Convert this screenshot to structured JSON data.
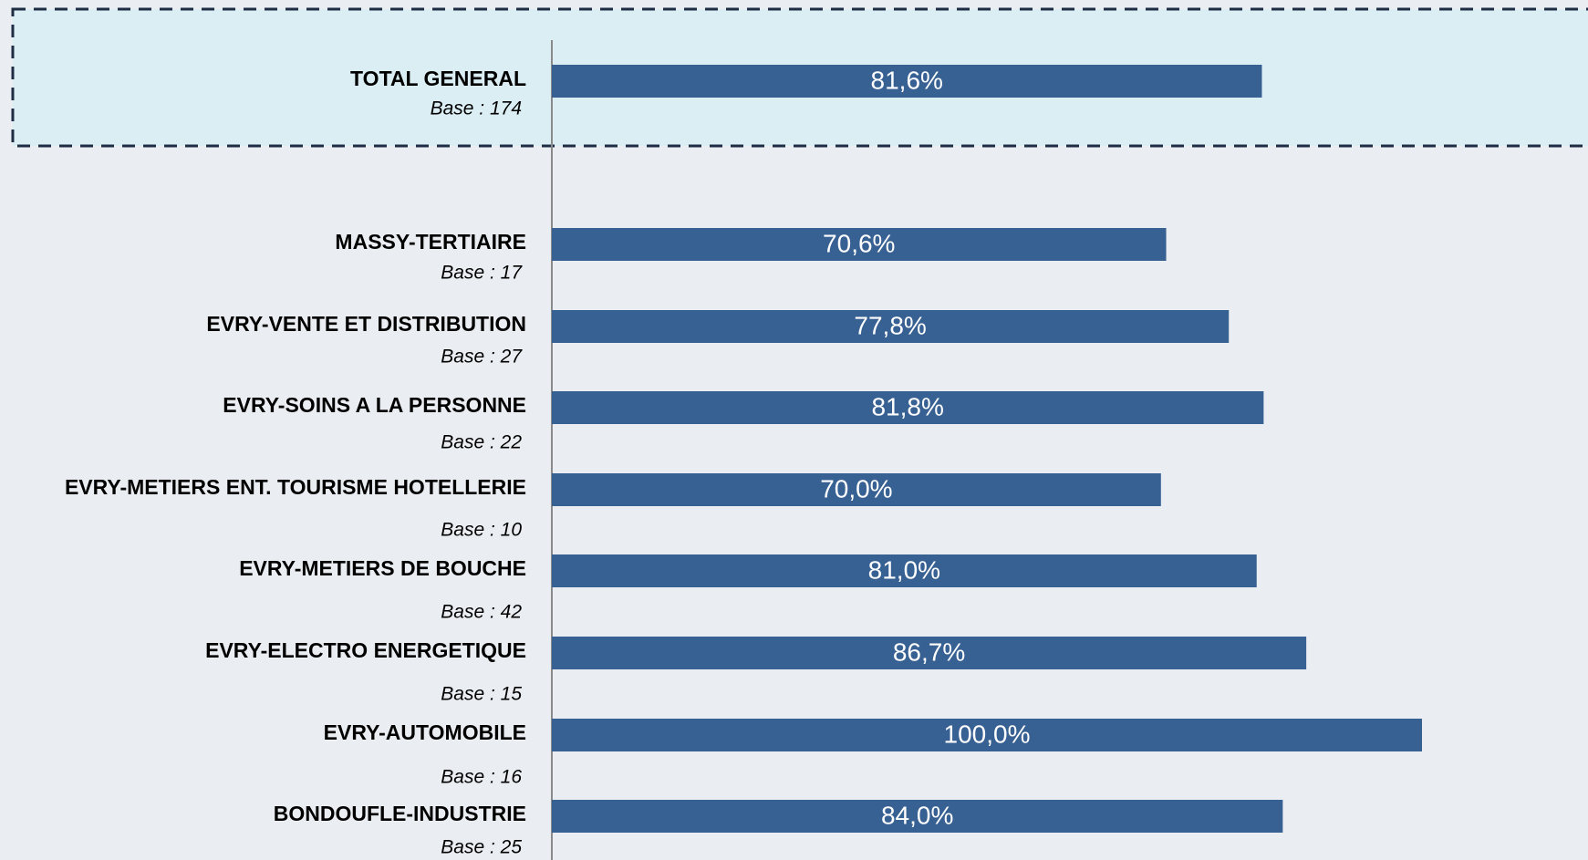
{
  "chart_data": {
    "type": "bar",
    "orientation": "horizontal",
    "categories": [
      "TOTAL GENERAL",
      "MASSY-TERTIAIRE",
      "EVRY-VENTE ET DISTRIBUTION",
      "EVRY-SOINS A LA PERSONNE",
      "EVRY-METIERS ENT. TOURISME HOTELLERIE",
      "EVRY-METIERS DE BOUCHE",
      "EVRY-ELECTRO ENERGETIQUE",
      "EVRY-AUTOMOBILE",
      "BONDOUFLE-INDUSTRIE"
    ],
    "bases": [
      "Base : 174",
      "Base : 17",
      "Base : 27",
      "Base : 22",
      "Base : 10",
      "Base : 42",
      "Base : 15",
      "Base : 16",
      "Base : 25"
    ],
    "values": [
      81.6,
      70.6,
      77.8,
      81.8,
      70.0,
      81.0,
      86.7,
      100.0,
      84.0
    ],
    "value_labels": [
      "81,6%",
      "70,6%",
      "77,8%",
      "81,8%",
      "70,0%",
      "81,0%",
      "86,7%",
      "100,0%",
      "84,0%"
    ],
    "color": "#386193",
    "xlim": [
      0,
      100
    ]
  }
}
